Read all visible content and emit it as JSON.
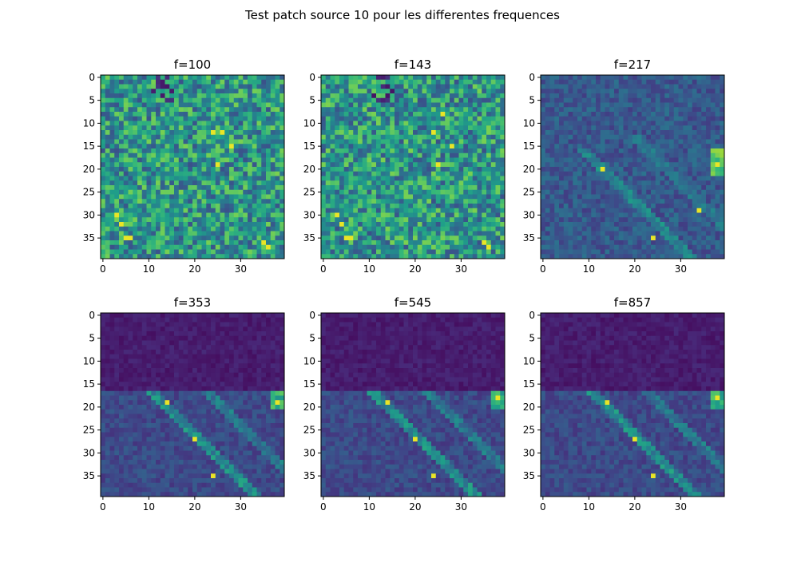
{
  "figure": {
    "suptitle": "Test patch source 10 pour les differentes frequences"
  },
  "chart_data": [
    {
      "type": "heatmap",
      "title": "f=100",
      "rows": 40,
      "cols": 40,
      "x_ticks": [
        "0",
        "10",
        "20",
        "30"
      ],
      "y_ticks": [
        "0",
        "5",
        "10",
        "15",
        "20",
        "25",
        "30",
        "35"
      ],
      "pattern": "noisy",
      "colormap": "viridis",
      "bright_cells": [
        [
          3,
          30
        ],
        [
          4,
          32
        ],
        [
          5,
          35
        ],
        [
          6,
          35
        ],
        [
          24,
          12
        ],
        [
          25,
          19
        ],
        [
          35,
          36
        ],
        [
          36,
          37
        ],
        [
          28,
          15
        ],
        [
          26,
          12
        ]
      ]
    },
    {
      "type": "heatmap",
      "title": "f=143",
      "rows": 40,
      "cols": 40,
      "x_ticks": [
        "0",
        "10",
        "20",
        "30"
      ],
      "y_ticks": [
        "0",
        "5",
        "10",
        "15",
        "20",
        "25",
        "30",
        "35"
      ],
      "pattern": "noisy",
      "colormap": "viridis",
      "bright_cells": [
        [
          3,
          30
        ],
        [
          4,
          32
        ],
        [
          5,
          35
        ],
        [
          6,
          35
        ],
        [
          24,
          12
        ],
        [
          25,
          19
        ],
        [
          35,
          36
        ],
        [
          36,
          37
        ],
        [
          26,
          8
        ],
        [
          28,
          15
        ]
      ]
    },
    {
      "type": "heatmap",
      "title": "f=217",
      "rows": 40,
      "cols": 40,
      "x_ticks": [
        "0",
        "10",
        "20",
        "30"
      ],
      "y_ticks": [
        "0",
        "5",
        "10",
        "15",
        "20",
        "25",
        "30",
        "35"
      ],
      "pattern": "streaks",
      "colormap": "viridis",
      "bright_cells": [
        [
          24,
          35
        ],
        [
          13,
          20
        ],
        [
          38,
          19
        ],
        [
          34,
          29
        ]
      ]
    },
    {
      "type": "heatmap",
      "title": "f=353",
      "rows": 40,
      "cols": 40,
      "x_ticks": [
        "0",
        "10",
        "20",
        "30"
      ],
      "y_ticks": [
        "0",
        "5",
        "10",
        "15",
        "20",
        "25",
        "30",
        "35"
      ],
      "pattern": "split",
      "colormap": "viridis",
      "bright_cells": [
        [
          24,
          35
        ],
        [
          20,
          27
        ],
        [
          14,
          19
        ],
        [
          38,
          19
        ]
      ]
    },
    {
      "type": "heatmap",
      "title": "f=545",
      "rows": 40,
      "cols": 40,
      "x_ticks": [
        "0",
        "10",
        "20",
        "30"
      ],
      "y_ticks": [
        "0",
        "5",
        "10",
        "15",
        "20",
        "25",
        "30",
        "35"
      ],
      "pattern": "split",
      "colormap": "viridis",
      "bright_cells": [
        [
          24,
          35
        ],
        [
          20,
          27
        ],
        [
          14,
          19
        ],
        [
          38,
          18
        ]
      ]
    },
    {
      "type": "heatmap",
      "title": "f=857",
      "rows": 40,
      "cols": 40,
      "x_ticks": [
        "0",
        "10",
        "20",
        "30"
      ],
      "y_ticks": [
        "0",
        "5",
        "10",
        "15",
        "20",
        "25",
        "30",
        "35"
      ],
      "pattern": "split",
      "colormap": "viridis",
      "bright_cells": [
        [
          24,
          35
        ],
        [
          20,
          27
        ],
        [
          14,
          19
        ],
        [
          38,
          18
        ]
      ]
    }
  ]
}
